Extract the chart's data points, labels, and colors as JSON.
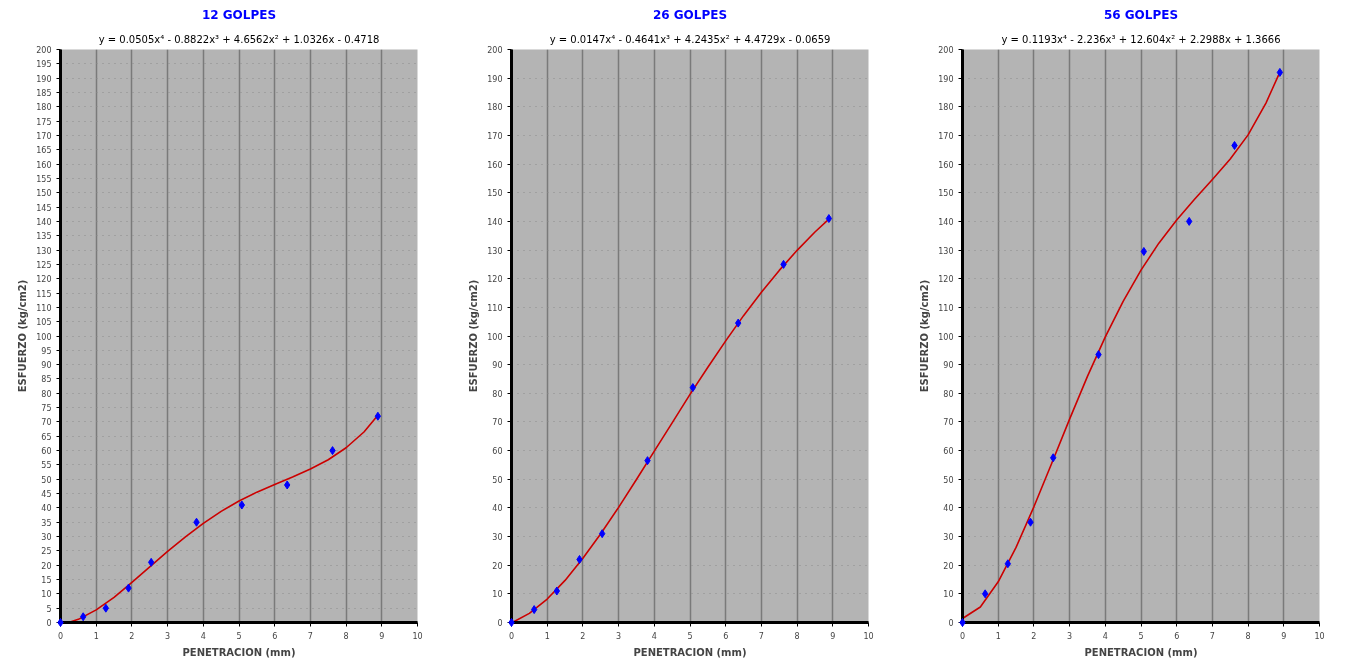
{
  "chart_data": [
    {
      "type": "scatter",
      "title": "12 GOLPES",
      "annotations": [
        "y = 0.0505x⁴ - 0.8822x³ + 4.6562x² + 1.0326x - 0.4718"
      ],
      "xlabel": "PENETRACION (mm)",
      "ylabel": "ESFUERZO (kg/cm2)",
      "xlim": [
        0,
        10
      ],
      "ylim": [
        0,
        200
      ],
      "xticks": [
        0,
        1,
        2,
        3,
        4,
        5,
        6,
        7,
        8,
        9,
        10
      ],
      "yticks": [
        0,
        5,
        10,
        15,
        20,
        25,
        30,
        35,
        40,
        45,
        50,
        55,
        60,
        65,
        70,
        75,
        80,
        85,
        90,
        95,
        100,
        105,
        110,
        115,
        120,
        125,
        130,
        135,
        140,
        145,
        150,
        155,
        160,
        165,
        170,
        175,
        180,
        185,
        190,
        195,
        200
      ],
      "grid": true,
      "series": [
        {
          "marker": "diamond",
          "color": "#0000ff",
          "x": [
            0,
            0.635,
            1.27,
            1.905,
            2.54,
            3.81,
            5.08,
            6.35,
            7.62,
            8.89
          ],
          "values": [
            0,
            2,
            5,
            12,
            21,
            35,
            41,
            48,
            60,
            72
          ]
        },
        {
          "type": "line",
          "color": "#cc0000",
          "x": [
            0.25,
            0.5,
            1,
            1.5,
            2,
            2.5,
            3,
            3.5,
            4,
            4.5,
            5,
            5.5,
            6,
            6.5,
            7,
            7.5,
            8,
            8.5,
            8.89
          ],
          "values": [
            0.1,
            1.1,
            4.4,
            8.8,
            14,
            19.4,
            24.8,
            29.9,
            34.6,
            38.8,
            42.4,
            45.5,
            48.2,
            50.8,
            53.6,
            56.8,
            61,
            66.5,
            72.3
          ]
        }
      ]
    },
    {
      "type": "scatter",
      "title": "26 GOLPES",
      "annotations": [
        "y = 0.0147x⁴ - 0.4641x³ + 4.2435x² + 4.4729x - 0.0659"
      ],
      "xlabel": "PENETRACION (mm)",
      "ylabel": "ESFUERZO (kg/cm2)",
      "xlim": [
        0,
        10
      ],
      "ylim": [
        0,
        200
      ],
      "xticks": [
        0,
        1,
        2,
        3,
        4,
        5,
        6,
        7,
        8,
        9,
        10
      ],
      "yticks": [
        0,
        10,
        20,
        30,
        40,
        50,
        60,
        70,
        80,
        90,
        100,
        110,
        120,
        130,
        140,
        150,
        160,
        170,
        180,
        190,
        200
      ],
      "grid": true,
      "series": [
        {
          "marker": "diamond",
          "color": "#0000ff",
          "x": [
            0,
            0.635,
            1.27,
            1.905,
            2.54,
            3.81,
            5.08,
            6.35,
            7.62,
            8.89
          ],
          "values": [
            0,
            4.5,
            11,
            22,
            31,
            56.5,
            82,
            104.5,
            125,
            141
          ]
        },
        {
          "type": "line",
          "color": "#cc0000",
          "x": [
            0.05,
            0.5,
            1,
            1.5,
            2,
            2.5,
            3,
            3.5,
            4,
            4.5,
            5,
            5.5,
            6,
            6.5,
            7,
            7.5,
            8,
            8.5,
            8.89
          ],
          "values": [
            0.2,
            3.2,
            8.2,
            14.7,
            22.4,
            31,
            40.2,
            49.9,
            59.8,
            69.7,
            79.6,
            89.1,
            98.3,
            107.1,
            115.3,
            122.9,
            129.9,
            136.3,
            140.8
          ]
        }
      ]
    },
    {
      "type": "scatter",
      "title": "56 GOLPES",
      "annotations": [
        "y = 0.1193x⁴ - 2.236x³ + 12.604x² + 2.2988x + 1.3666"
      ],
      "xlabel": "PENETRACION (mm)",
      "ylabel": "ESFUERZO (kg/cm2)",
      "xlim": [
        0,
        10
      ],
      "ylim": [
        0,
        200
      ],
      "xticks": [
        0,
        1,
        2,
        3,
        4,
        5,
        6,
        7,
        8,
        9,
        10
      ],
      "yticks": [
        0,
        10,
        20,
        30,
        40,
        50,
        60,
        70,
        80,
        90,
        100,
        110,
        120,
        130,
        140,
        150,
        160,
        170,
        180,
        190,
        200
      ],
      "grid": true,
      "series": [
        {
          "marker": "diamond",
          "color": "#0000ff",
          "x": [
            0,
            0.635,
            1.27,
            1.905,
            2.54,
            3.81,
            5.08,
            6.35,
            7.62,
            8.89
          ],
          "values": [
            0,
            10,
            20.5,
            35,
            57.5,
            93.5,
            129.5,
            140,
            166.5,
            192
          ]
        },
        {
          "type": "line",
          "color": "#cc0000",
          "x": [
            0,
            0.5,
            1,
            1.5,
            2,
            2.5,
            3,
            3.5,
            4,
            4.5,
            5,
            5.5,
            6,
            6.5,
            7,
            7.5,
            8,
            8.5,
            8.89
          ],
          "values": [
            1.4,
            5.4,
            14.2,
            26.2,
            40.4,
            55.6,
            71,
            85.9,
            99.7,
            112.1,
            123,
            132.4,
            140.5,
            147.7,
            154.6,
            161.8,
            170.2,
            181.3,
            192.1
          ]
        }
      ]
    }
  ]
}
